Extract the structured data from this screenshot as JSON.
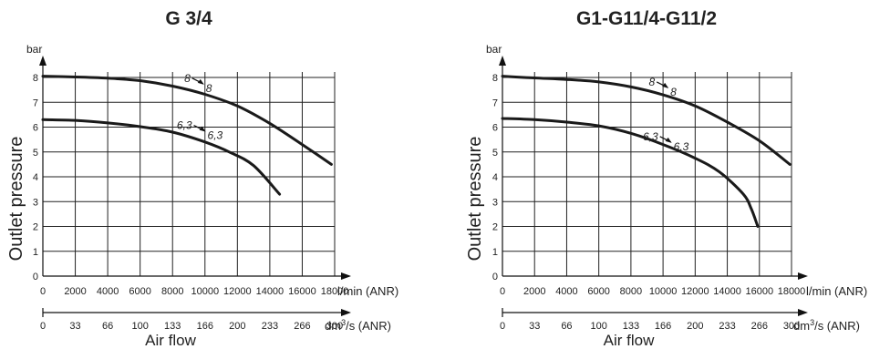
{
  "chart_data": [
    {
      "type": "line",
      "title": "G 3/4",
      "ylabel": "Outlet pressure",
      "yunit": "bar",
      "xlabel": "Air flow",
      "x_unit_primary": "l/min (ANR)",
      "x_unit_secondary": "dm3/s (ANR)",
      "xlim": [
        0,
        18000
      ],
      "ylim": [
        0,
        8
      ],
      "x_ticks": [
        "0",
        "2000",
        "4000",
        "6000",
        "8000",
        "10000",
        "12000",
        "14000",
        "16000",
        "18000"
      ],
      "x_ticks_secondary": [
        "0",
        "33",
        "66",
        "100",
        "133",
        "166",
        "200",
        "233",
        "266",
        "300"
      ],
      "y_ticks": [
        "0",
        "1",
        "2",
        "3",
        "4",
        "5",
        "6",
        "7",
        "8"
      ],
      "grid": true,
      "series": [
        {
          "name": "8",
          "x": [
            0,
            2000,
            4000,
            6000,
            8000,
            10000,
            12000,
            14000,
            16000,
            17800
          ],
          "y": [
            8.05,
            8.02,
            7.97,
            7.87,
            7.65,
            7.32,
            6.85,
            6.15,
            5.3,
            4.5
          ]
        },
        {
          "name": "6,3",
          "x": [
            0,
            2000,
            4000,
            6000,
            8000,
            10000,
            11500,
            13000,
            14600
          ],
          "y": [
            6.3,
            6.27,
            6.17,
            6.02,
            5.8,
            5.4,
            5.0,
            4.45,
            3.3
          ]
        }
      ],
      "annotations": [
        {
          "from": "8",
          "to": "8",
          "x": 10000,
          "y": 7.75
        },
        {
          "from": "6,3",
          "to": "6,3",
          "x": 10100,
          "y": 5.85
        }
      ]
    },
    {
      "type": "line",
      "title": "G1-G11/4-G11/2",
      "ylabel": "Outlet pressure",
      "yunit": "bar",
      "xlabel": "Air flow",
      "x_unit_primary": "l/min (ANR)",
      "x_unit_secondary": "dm3/s (ANR)",
      "xlim": [
        0,
        18000
      ],
      "ylim": [
        0,
        8
      ],
      "x_ticks": [
        "0",
        "2000",
        "4000",
        "6000",
        "8000",
        "10000",
        "12000",
        "14000",
        "16000",
        "18000"
      ],
      "x_ticks_secondary": [
        "0",
        "33",
        "66",
        "100",
        "133",
        "166",
        "200",
        "233",
        "266",
        "300"
      ],
      "y_ticks": [
        "0",
        "1",
        "2",
        "3",
        "4",
        "5",
        "6",
        "7",
        "8"
      ],
      "grid": true,
      "series": [
        {
          "name": "8",
          "x": [
            0,
            2000,
            4000,
            6000,
            8000,
            10000,
            12000,
            14000,
            16000,
            17900
          ],
          "y": [
            8.05,
            7.98,
            7.92,
            7.82,
            7.62,
            7.3,
            6.85,
            6.2,
            5.45,
            4.5
          ]
        },
        {
          "name": "6,3",
          "x": [
            0,
            2000,
            4000,
            6000,
            8000,
            10000,
            12000,
            13500,
            15000,
            15500,
            15900
          ],
          "y": [
            6.35,
            6.3,
            6.2,
            6.05,
            5.75,
            5.3,
            4.75,
            4.2,
            3.3,
            2.7,
            2.0
          ]
        }
      ],
      "annotations": [
        {
          "from": "8",
          "to": "8",
          "x": 10400,
          "y": 7.6
        },
        {
          "from": "6,3",
          "to": "6,3",
          "x": 10600,
          "y": 5.4
        }
      ]
    }
  ]
}
